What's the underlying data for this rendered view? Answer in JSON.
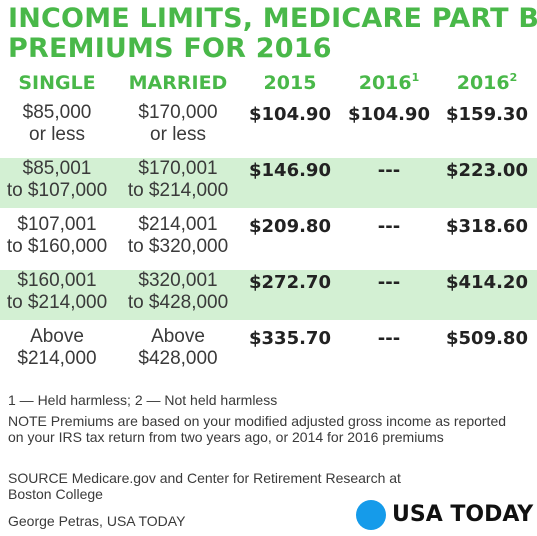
{
  "colors": {
    "title": "#49b849",
    "header": "#49b849",
    "row_shade": "#d3f0d3",
    "brand_dot": "#159bea"
  },
  "title": {
    "line1": "INCOME LIMITS, MEDICARE PART B",
    "line2": "PREMIUMS FOR 2016"
  },
  "header": {
    "single": "SINGLE",
    "married": "MARRIED",
    "y2015": "2015",
    "y2016a": "2016",
    "y2016a_sup": "1",
    "y2016b": "2016",
    "y2016b_sup": "2"
  },
  "chart_data": {
    "type": "table",
    "columns": [
      "SINGLE",
      "MARRIED",
      "2015",
      "2016¹",
      "2016²"
    ],
    "rows": [
      {
        "single": [
          "$85,000",
          "or less"
        ],
        "married": [
          "$170,000",
          "or less"
        ],
        "p2015": "$104.90",
        "p2016_held": "$104.90",
        "p2016_not_held": "$159.30",
        "shaded": false
      },
      {
        "single": [
          "$85,001",
          "to $107,000"
        ],
        "married": [
          "$170,001",
          "to $214,000"
        ],
        "p2015": "$146.90",
        "p2016_held": "---",
        "p2016_not_held": "$223.00",
        "shaded": true
      },
      {
        "single": [
          "$107,001",
          "to $160,000"
        ],
        "married": [
          "$214,001",
          "to $320,000"
        ],
        "p2015": "$209.80",
        "p2016_held": "---",
        "p2016_not_held": "$318.60",
        "shaded": false
      },
      {
        "single": [
          "$160,001",
          "to $214,000"
        ],
        "married": [
          "$320,001",
          "to $428,000"
        ],
        "p2015": "$272.70",
        "p2016_held": "---",
        "p2016_not_held": "$414.20",
        "shaded": true
      },
      {
        "single": [
          "Above",
          "$214,000"
        ],
        "married": [
          "Above",
          "$428,000"
        ],
        "p2015": "$335.70",
        "p2016_held": "---",
        "p2016_not_held": "$509.80",
        "shaded": false
      }
    ]
  },
  "notes": {
    "footnote": "1 — Held harmless; 2 — Not held harmless",
    "premiums": "NOTE Premiums are based on your modified adjusted gross income as reported on your IRS tax return from two years ago, or 2014 for 2016 premiums",
    "source": "SOURCE Medicare.gov and Center for Retirement Research at Boston College",
    "credit": "George Petras, USA TODAY"
  },
  "brand": {
    "text": "USA TODAY"
  }
}
